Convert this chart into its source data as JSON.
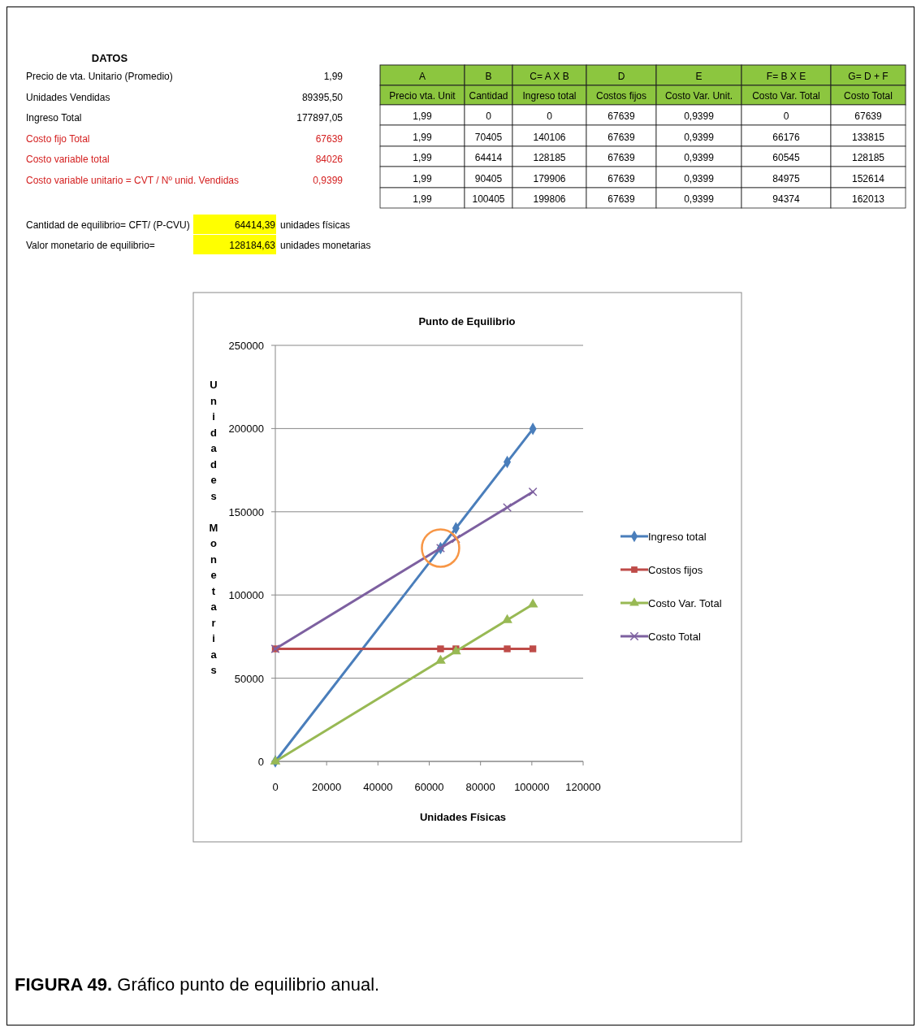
{
  "chart_data": [
    {
      "type": "other",
      "title": "DATOS",
      "annotations": [
        "Precio de vta. Unitario (Promedio)",
        "1,99",
        "Unidades Vendidas",
        "89395,50",
        "Ingreso Total",
        "177897,05",
        "Costo fijo Total",
        "67639",
        "Costo variable total",
        "84026",
        "Costo variable unitario = CVT / Nº unid. Vendidas",
        "0,9399"
      ],
      "colors": [
        "#000000",
        "#000000",
        "#000000",
        "#000000",
        "#000000",
        "#000000",
        "#d42020",
        "#d42020",
        "#d42020",
        "#d42020",
        "#d42020",
        "#d42020"
      ]
    },
    {
      "type": "other",
      "cell_labels": [
        [
          "A",
          "B",
          "C= A X B",
          "D",
          "E",
          "F= B X E",
          "G= D + F"
        ],
        [
          "Precio vta. Unit",
          "Cantidad",
          "Ingreso total",
          "Costos fijos",
          "Costo Var. Unit.",
          "Costo Var. Total",
          "Costo Total"
        ],
        [
          "1,99",
          "0",
          "0",
          "67639",
          "0,9399",
          "0",
          "67639"
        ],
        [
          "1,99",
          "70405",
          "140106",
          "67639",
          "0,9399",
          "66176",
          "133815"
        ],
        [
          "1,99",
          "64414",
          "128185",
          "67639",
          "0,9399",
          "60545",
          "128185"
        ],
        [
          "1,99",
          "90405",
          "179906",
          "67639",
          "0,9399",
          "84975",
          "152614"
        ],
        [
          "1,99",
          "100405",
          "199806",
          "67639",
          "0,9399",
          "94374",
          "162013"
        ]
      ]
    },
    {
      "type": "other",
      "annotations": [
        "Cantidad de equilibrio= CFT/ (P-CVU)",
        "64414,39",
        "unidades físicas",
        "Valor monetario de equilibrio=",
        "128184,63",
        "unidades monetarias"
      ]
    },
    {
      "type": "line",
      "title": "Punto de Equilibrio",
      "xlabel": "Unidades Físicas",
      "ylabel": "Unidades Monetarias",
      "xlim": [
        0,
        120000
      ],
      "xticks": [
        0,
        20000,
        40000,
        60000,
        80000,
        100000,
        120000
      ],
      "ylim": [
        0,
        250000
      ],
      "yticks": [
        0,
        50000,
        100000,
        150000,
        200000,
        250000
      ],
      "grid": "y",
      "legend": "right",
      "annotations": [
        "FIGURA 49.",
        "Gráfico punto de equilibrio anual."
      ],
      "series": [
        {
          "name": "Ingreso total",
          "color": "#4a7ebb",
          "marker": "diamond",
          "x": [
            0,
            70405,
            64414,
            90405,
            100405
          ],
          "values": [
            0,
            140106,
            128185,
            179906,
            199806
          ]
        },
        {
          "name": "Costos fijos",
          "color": "#be4b48",
          "marker": "square",
          "x": [
            0,
            70405,
            64414,
            90405,
            100405
          ],
          "values": [
            67639,
            67639,
            67639,
            67639,
            67639
          ]
        },
        {
          "name": "Costo Var. Total",
          "color": "#98b954",
          "marker": "triangle",
          "x": [
            0,
            70405,
            64414,
            90405,
            100405
          ],
          "values": [
            0,
            66176,
            60545,
            84975,
            94374
          ]
        },
        {
          "name": "Costo Total",
          "color": "#7d60a0",
          "marker": "cross",
          "x": [
            0,
            70405,
            64414,
            90405,
            100405
          ],
          "values": [
            67639,
            133815,
            128185,
            152614,
            162013
          ]
        },
        {
          "type": "scatter",
          "color": "#f79646",
          "marker": "circle",
          "x": [
            64414.39
          ],
          "values": [
            128184.63
          ]
        }
      ]
    }
  ]
}
